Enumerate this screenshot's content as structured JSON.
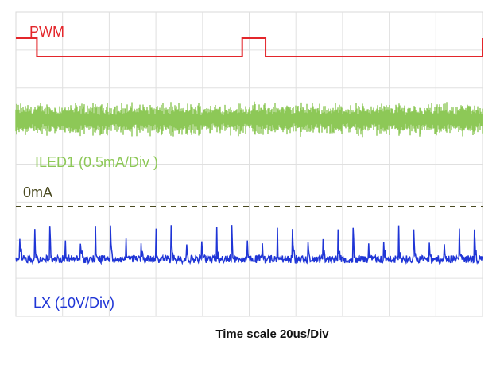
{
  "chart_data": {
    "type": "line",
    "title": "",
    "caption": "Time scale  20us/Div",
    "grid": true,
    "time_per_div_us": 20,
    "x_divisions": 10,
    "xlim_us": [
      0,
      200
    ],
    "series": [
      {
        "name": "PWM",
        "color": "#e3262b",
        "kind": "digital",
        "high_intervals_us": [
          [
            0,
            9
          ],
          [
            97,
            107
          ]
        ],
        "label_text": "PWM"
      },
      {
        "name": "ILED1",
        "color": "#8dc857",
        "kind": "noise-band",
        "scale": "0.5mA/Div",
        "label_text": "ILED1  (0.5mA/Div )"
      },
      {
        "name": "0mA",
        "color": "#4a4a20",
        "kind": "dashed-reference",
        "label_text": "0mA"
      },
      {
        "name": "LX",
        "color": "#1f35d6",
        "kind": "switching-spikes",
        "scale": "10V/Div",
        "spike_period_us": 6.5,
        "label_text": "LX  (10V/Div)"
      }
    ]
  }
}
